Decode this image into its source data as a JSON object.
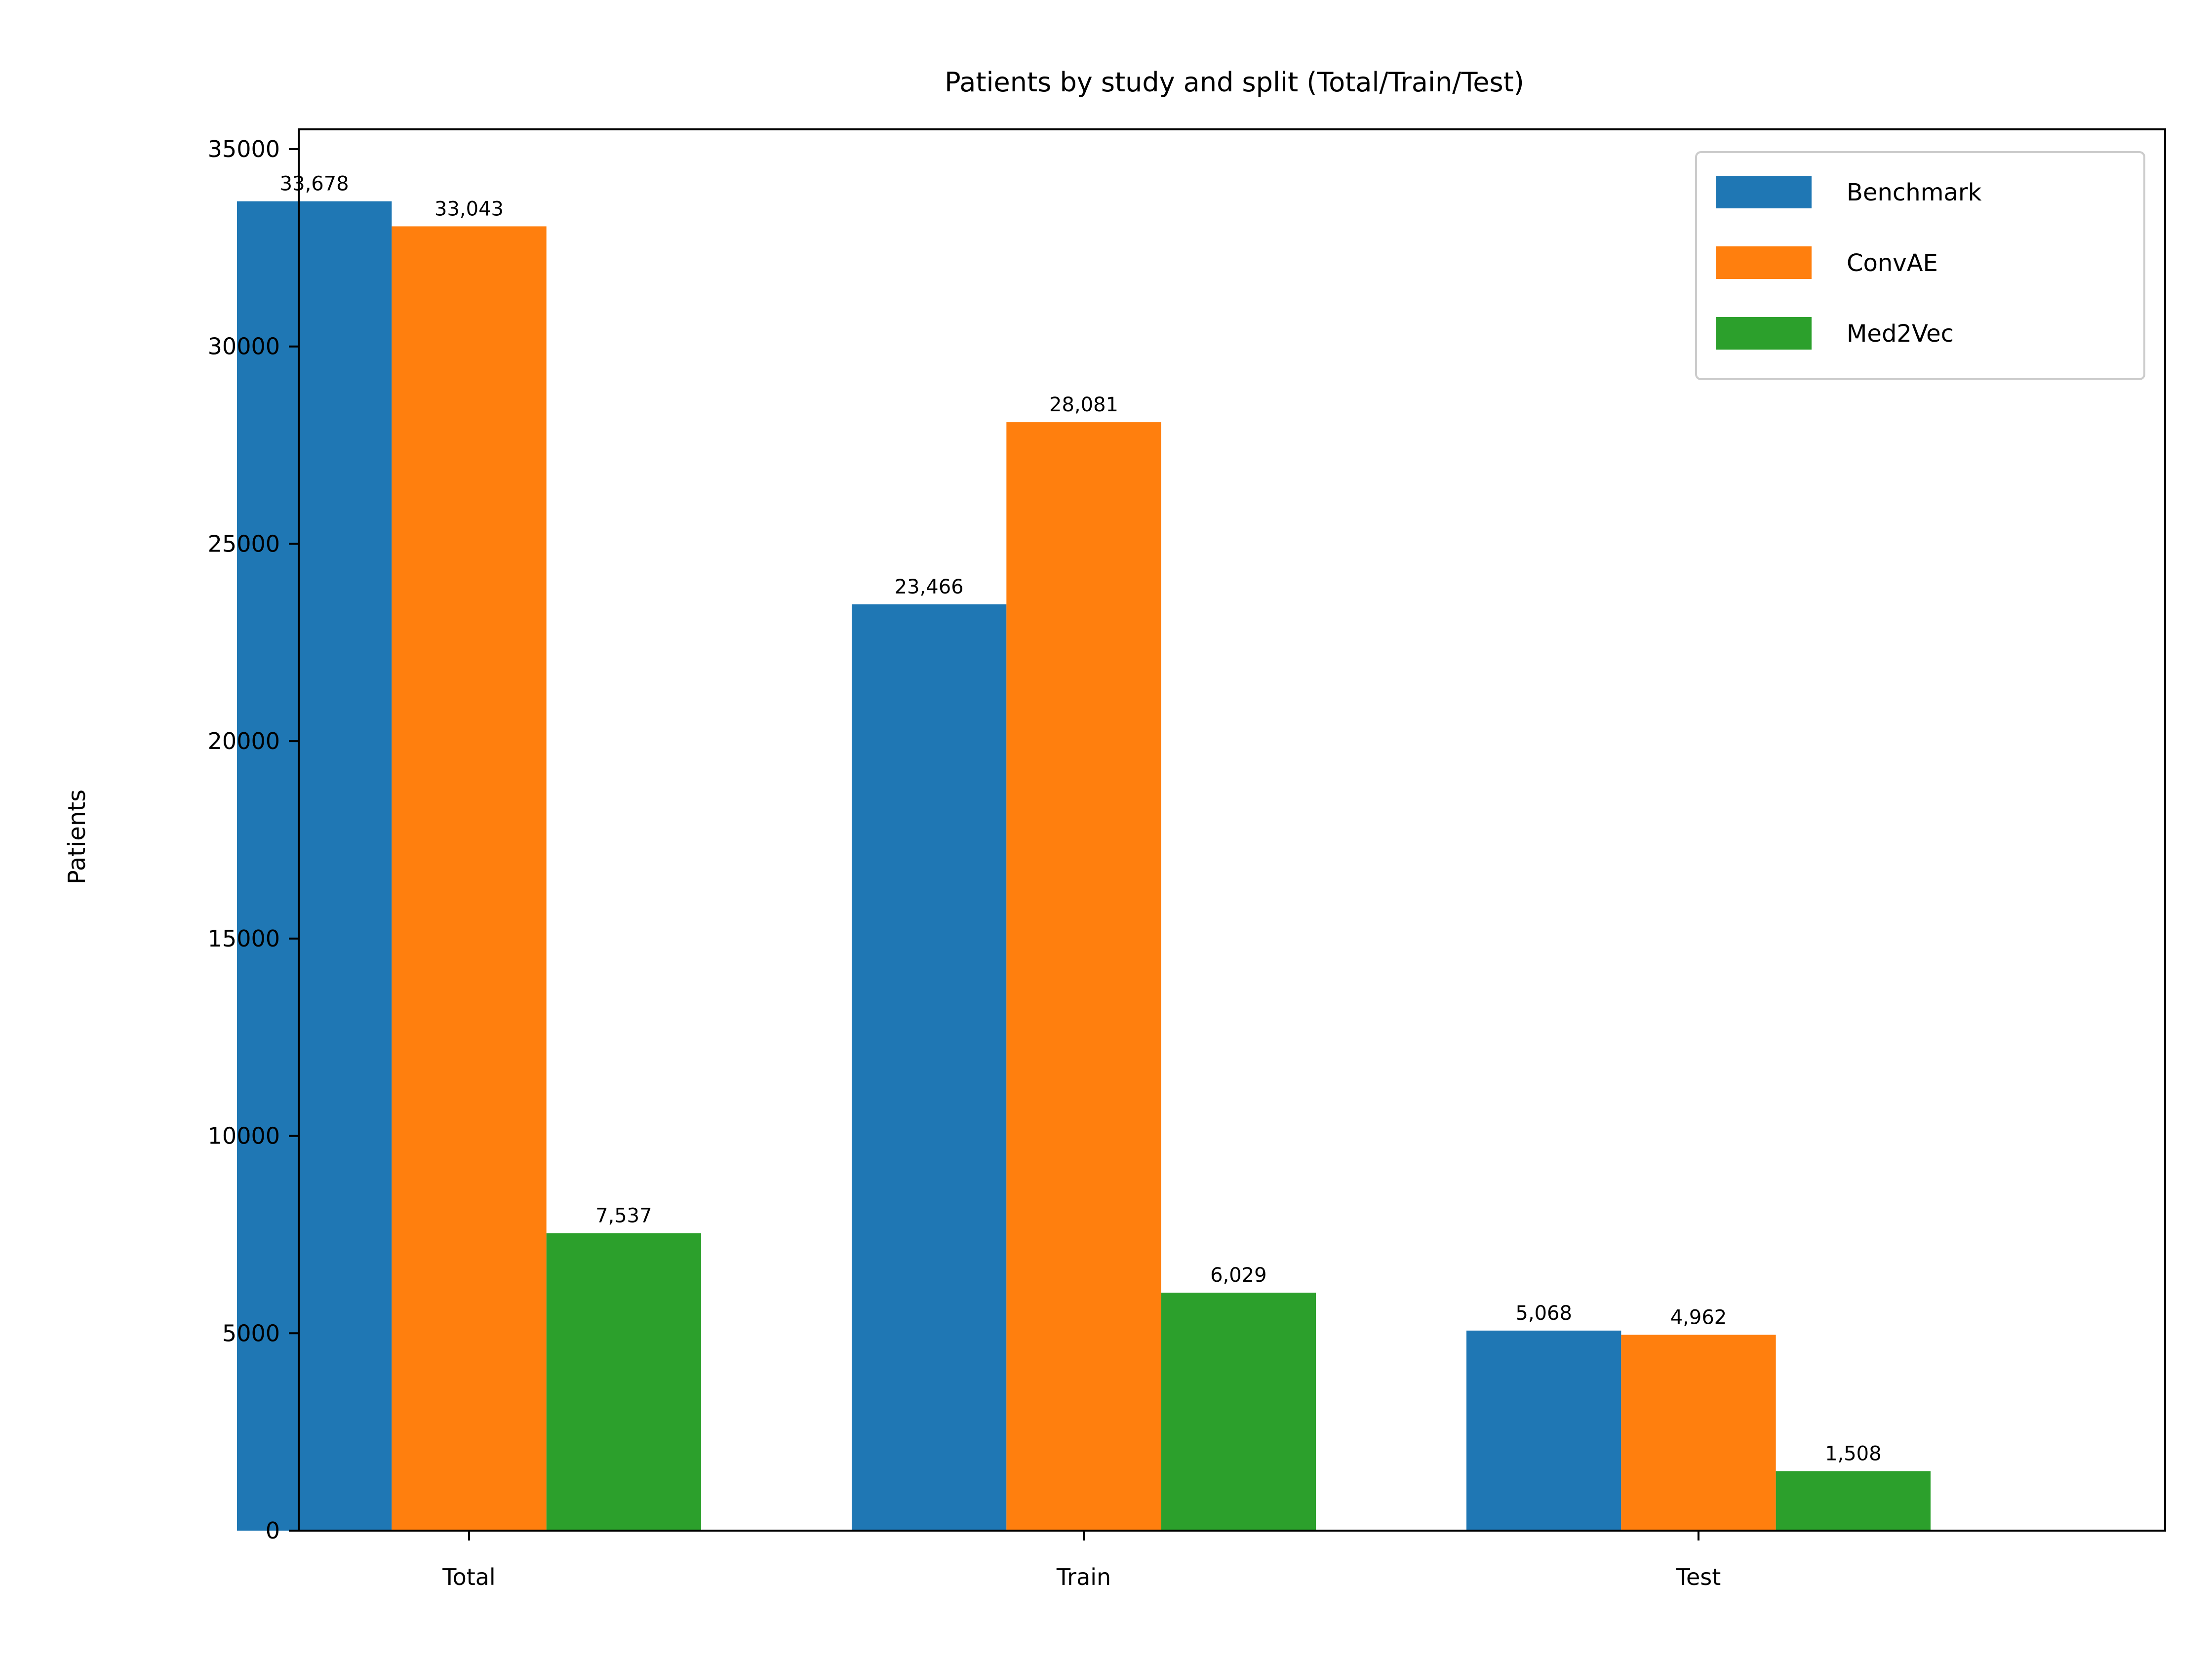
{
  "chart_data": {
    "type": "bar",
    "title": "Patients by study and split (Total/Train/Test)",
    "xlabel": "",
    "ylabel": "Patients",
    "categories": [
      "Total",
      "Train",
      "Test"
    ],
    "series": [
      {
        "name": "Benchmark",
        "color": "#1f77b4",
        "values": [
          33678,
          23466,
          5068
        ],
        "labels": [
          "33,678",
          "23,466",
          "5,068"
        ]
      },
      {
        "name": "ConvAE",
        "color": "#ff7f0e",
        "values": [
          33043,
          28081,
          4962
        ],
        "labels": [
          "33,043",
          "28,081",
          "4,962"
        ]
      },
      {
        "name": "Med2Vec",
        "color": "#2ca02c",
        "values": [
          7537,
          6029,
          1508
        ],
        "labels": [
          "7,537",
          "6,029",
          "1,508"
        ]
      }
    ],
    "ylim": [
      0,
      35500
    ],
    "yticks": [
      0,
      5000,
      10000,
      15000,
      20000,
      25000,
      30000,
      35000
    ],
    "ytick_labels": [
      "0",
      "5000",
      "10000",
      "15000",
      "20000",
      "25000",
      "30000",
      "35000"
    ],
    "grid": false,
    "legend_position": "top-right"
  }
}
